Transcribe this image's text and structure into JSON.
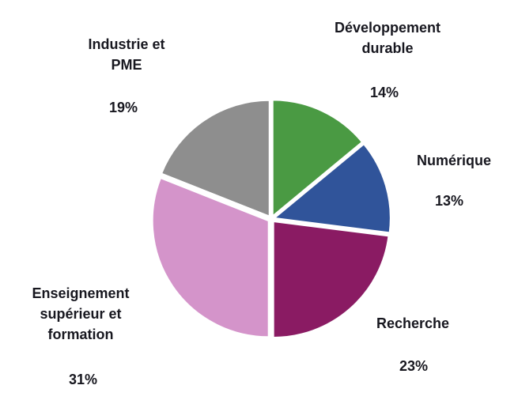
{
  "chart_data": {
    "type": "pie",
    "title": "",
    "legend_position": "none",
    "labels_on_chart": true,
    "background_color": "#ffffff",
    "text_color": "#17171f",
    "separator_color": "#ffffff",
    "slices": [
      {
        "id": "developpement-durable",
        "label": "Développement\ndurable",
        "value": 14,
        "pct_label": "14%",
        "color": "#4a9a43"
      },
      {
        "id": "numerique",
        "label": "Numérique",
        "value": 13,
        "pct_label": "13%",
        "color": "#30549a"
      },
      {
        "id": "recherche",
        "label": "Recherche",
        "value": 23,
        "pct_label": "23%",
        "color": "#8a1b63"
      },
      {
        "id": "enseignement-superieur-formation",
        "label": "Enseignement\nsupérieur et\nformation",
        "value": 31,
        "pct_label": "31%",
        "color": "#d494ca"
      },
      {
        "id": "industrie-pme",
        "label": "Industrie et\nPME",
        "value": 19,
        "pct_label": "19%",
        "color": "#8e8e8e"
      }
    ]
  }
}
